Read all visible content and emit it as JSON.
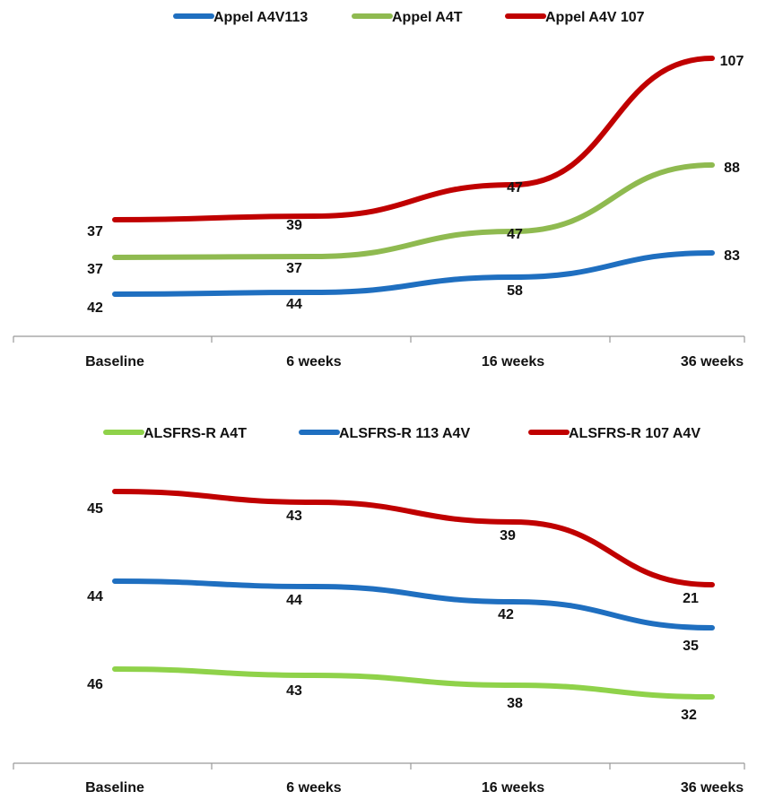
{
  "chart_data": [
    {
      "type": "line",
      "categories": [
        "Baseline",
        "6 weeks",
        "16 weeks",
        "36 weeks"
      ],
      "series": [
        {
          "name": "Appel A4V113",
          "color": "#1f6fc0",
          "values": [
            42,
            44,
            58,
            83
          ]
        },
        {
          "name": "Appel A4T",
          "color": "#8fba50",
          "values": [
            37,
            37,
            47,
            88
          ]
        },
        {
          "name": "Appel A4V 107",
          "color": "#c00000",
          "values": [
            37,
            39,
            47,
            107
          ]
        }
      ],
      "legend": "top",
      "grid": false
    },
    {
      "type": "line",
      "categories": [
        "Baseline",
        "6 weeks",
        "16 weeks",
        "36 weeks"
      ],
      "series": [
        {
          "name": "ALSFRS-R A4T",
          "color": "#8fd24a",
          "values": [
            46,
            43,
            38,
            32
          ]
        },
        {
          "name": "ALSFRS-R 113 A4V",
          "color": "#1f6fc0",
          "values": [
            44,
            44,
            42,
            35
          ]
        },
        {
          "name": "ALSFRS-R 107 A4V",
          "color": "#c00000",
          "values": [
            45,
            43,
            39,
            21
          ]
        }
      ],
      "legend": "top",
      "grid": false
    }
  ]
}
